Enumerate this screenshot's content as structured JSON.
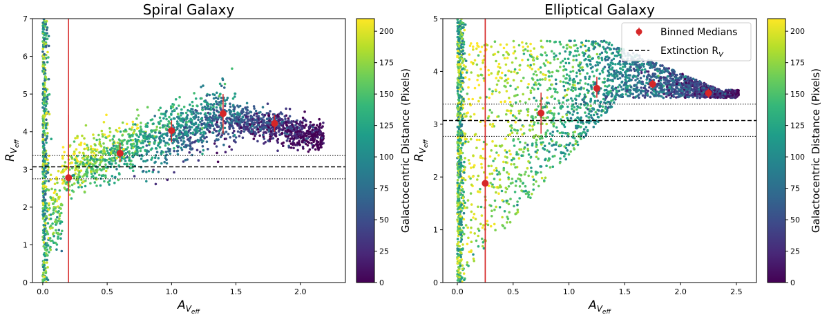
{
  "colors": {
    "median": "#d62728",
    "refline": "#000000",
    "viridis": [
      "#440154",
      "#482878",
      "#3e4989",
      "#31688e",
      "#26828e",
      "#1f9e89",
      "#35b779",
      "#6ece58",
      "#b5de2b",
      "#fde725"
    ]
  },
  "chart_data": [
    {
      "type": "scatter",
      "title": "Spiral Galaxy",
      "xlabel_main": "A",
      "xlabel_sub": "V",
      "xlabel_subsub": "eff",
      "ylabel_main": "R",
      "ylabel_sub": "V",
      "ylabel_subsub": "eff",
      "xlim": [
        -0.08,
        2.35
      ],
      "ylim": [
        0,
        7
      ],
      "xticks": [
        0.0,
        0.5,
        1.0,
        1.5,
        2.0
      ],
      "xtick_labels": [
        "0.0",
        "0.5",
        "1.0",
        "1.5",
        "2.0"
      ],
      "yticks": [
        0,
        1,
        2,
        3,
        4,
        5,
        6,
        7
      ],
      "ytick_labels": [
        "0",
        "1",
        "2",
        "3",
        "4",
        "5",
        "6",
        "7"
      ],
      "vertical_line_x": 0.2,
      "hline_dashed": 3.07,
      "hlines_dotted": [
        2.75,
        3.37
      ],
      "binned_medians": {
        "x": [
          0.2,
          0.6,
          1.0,
          1.4,
          1.8
        ],
        "y": [
          2.78,
          3.43,
          4.03,
          4.48,
          4.22
        ],
        "err_low": [
          2.78,
          3.2,
          3.72,
          3.95,
          4.0
        ],
        "err_high": [
          4.45,
          3.7,
          4.3,
          5.0,
          4.45
        ]
      },
      "colorbar": {
        "label": "Galactocentric Distance (Pixels)",
        "range": [
          0,
          210
        ],
        "ticks": [
          0,
          25,
          50,
          75,
          100,
          125,
          150,
          175,
          200
        ],
        "tick_labels": [
          "0",
          "25",
          "50",
          "75",
          "100",
          "125",
          "150",
          "175",
          "200"
        ]
      },
      "grid": false
    },
    {
      "type": "scatter",
      "title": "Elliptical Galaxy",
      "xlabel_main": "A",
      "xlabel_sub": "V",
      "xlabel_subsub": "eff",
      "ylabel_main": "R",
      "ylabel_sub": "V",
      "ylabel_subsub": "eff",
      "xlim": [
        -0.13,
        2.68
      ],
      "ylim": [
        0,
        5
      ],
      "xticks": [
        0.0,
        0.5,
        1.0,
        1.5,
        2.0,
        2.5
      ],
      "xtick_labels": [
        "0.0",
        "0.5",
        "1.0",
        "1.5",
        "2.0",
        "2.5"
      ],
      "yticks": [
        0,
        1,
        2,
        3,
        4,
        5
      ],
      "ytick_labels": [
        "0",
        "1",
        "2",
        "3",
        "4",
        "5"
      ],
      "vertical_line_x": 0.25,
      "hline_dashed": 3.07,
      "hlines_dotted": [
        2.77,
        3.38
      ],
      "binned_medians": {
        "x": [
          0.25,
          0.75,
          1.25,
          1.75,
          2.25
        ],
        "y": [
          1.88,
          3.21,
          3.68,
          3.76,
          3.59
        ],
        "err_low": [
          0.0,
          2.82,
          3.5,
          3.68,
          3.5
        ],
        "err_high": [
          5.0,
          3.6,
          3.9,
          3.84,
          3.67
        ]
      },
      "legend": {
        "placement": "top-right",
        "entries": [
          {
            "label": "Binned Medians",
            "style": "marker"
          },
          {
            "label_main": "Extinction R",
            "label_sub": "V",
            "style": "dashed"
          }
        ]
      },
      "colorbar": {
        "label": "Galactocentric Distance (Pixels)",
        "range": [
          0,
          210
        ],
        "ticks": [
          0,
          25,
          50,
          75,
          100,
          125,
          150,
          175,
          200
        ],
        "tick_labels": [
          "0",
          "25",
          "50",
          "75",
          "100",
          "125",
          "150",
          "175",
          "200"
        ]
      },
      "grid": false
    }
  ]
}
